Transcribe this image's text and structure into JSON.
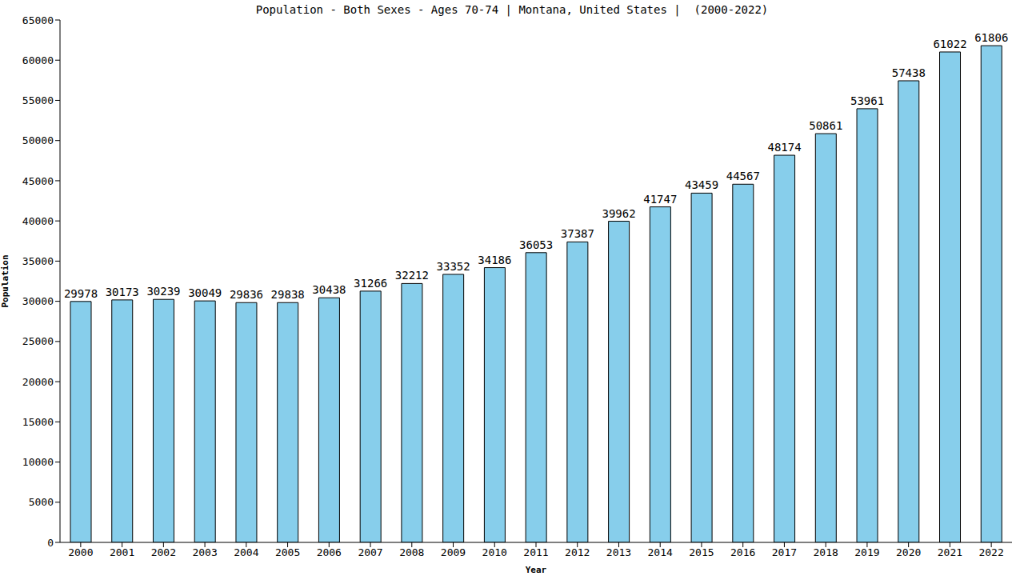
{
  "chart_data": {
    "type": "bar",
    "title": "Population - Both Sexes - Ages 70-74 | Montana, United States |  (2000-2022)",
    "x_label": "Year",
    "y_label": "Population",
    "categories": [
      "2000",
      "2001",
      "2002",
      "2003",
      "2004",
      "2005",
      "2006",
      "2007",
      "2008",
      "2009",
      "2010",
      "2011",
      "2012",
      "2013",
      "2014",
      "2015",
      "2016",
      "2017",
      "2018",
      "2019",
      "2020",
      "2021",
      "2022"
    ],
    "values": [
      29978,
      30173,
      30239,
      30049,
      29836,
      29838,
      30438,
      31266,
      32212,
      33352,
      34186,
      36053,
      37387,
      39962,
      41747,
      43459,
      44567,
      48174,
      50861,
      53961,
      57438,
      61022,
      61806
    ],
    "color": "#87ceeb",
    "ylim": [
      0,
      65000
    ],
    "yticks": [
      0,
      5000,
      10000,
      15000,
      20000,
      25000,
      30000,
      35000,
      40000,
      45000,
      50000,
      55000,
      60000,
      65000
    ],
    "grid": false,
    "data_labels": true
  }
}
